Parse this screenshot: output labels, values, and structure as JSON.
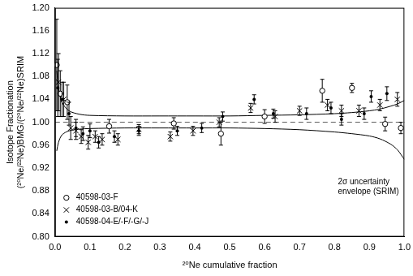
{
  "chart_data": {
    "type": "scatter",
    "x_label": "²⁰Ne cumulative fraction",
    "y_label": [
      "Isotope Fractionation",
      "(²⁰Ne/²²Ne)BMG/(²⁰Ne/²²Ne)SRIM"
    ],
    "xlim": [
      0,
      1
    ],
    "ylim": [
      0.8,
      1.2
    ],
    "xticks": [
      {
        "value": 0,
        "label": "0.0"
      },
      0.1,
      0.2,
      0.3,
      0.4,
      0.5,
      0.6,
      0.7,
      0.8,
      0.9,
      {
        "value": 1,
        "label": "1.0"
      }
    ],
    "yticks": [
      {
        "value": 0.8,
        "label": "0.80"
      },
      0.84,
      0.88,
      0.92,
      0.96,
      {
        "value": 1,
        "label": "1.00"
      },
      1.04,
      1.08,
      1.12,
      1.16,
      {
        "value": 1.2,
        "label": "1.20"
      }
    ],
    "grid": false,
    "legend": "lower left",
    "series": [
      {
        "name": "40598-03-F",
        "marker": "circle",
        "color": "#000000",
        "x": [
          0.005,
          0.015,
          0.035,
          0.155,
          0.34,
          0.475,
          0.6,
          0.765,
          0.85,
          0.945,
          0.99
        ],
        "values": [
          1.1,
          1.05,
          1.035,
          0.993,
          0.998,
          0.98,
          1.01,
          1.055,
          1.06,
          0.997,
          0.99
        ],
        "errors": [
          0.08,
          0.04,
          0.03,
          0.012,
          0.01,
          0.02,
          0.012,
          0.02,
          0.008,
          0.012,
          0.01
        ]
      },
      {
        "name": "40598-03-B/04-K",
        "marker": "x",
        "color": "#000000",
        "x": [
          0.01,
          0.025,
          0.045,
          0.06,
          0.075,
          0.095,
          0.115,
          0.135,
          0.18,
          0.24,
          0.33,
          0.395,
          0.47,
          0.56,
          0.63,
          0.7,
          0.78,
          0.82,
          0.87,
          0.93,
          0.98
        ],
        "values": [
          1.07,
          1.04,
          0.99,
          0.985,
          0.975,
          0.965,
          0.975,
          0.97,
          0.97,
          0.988,
          0.975,
          0.985,
          1.0,
          1.025,
          1.01,
          1.02,
          1.03,
          1.02,
          1.02,
          1.03,
          1.04
        ],
        "errors": [
          0.05,
          0.03,
          0.02,
          0.015,
          0.012,
          0.012,
          0.01,
          0.01,
          0.01,
          0.008,
          0.008,
          0.008,
          0.008,
          0.008,
          0.01,
          0.008,
          0.01,
          0.01,
          0.01,
          0.01,
          0.012
        ]
      },
      {
        "name": "40598-04-E/-F/-G/-J",
        "marker": "dot",
        "color": "#000000",
        "x": [
          0.008,
          0.02,
          0.04,
          0.06,
          0.08,
          0.1,
          0.125,
          0.17,
          0.24,
          0.35,
          0.42,
          0.48,
          0.57,
          0.625,
          0.72,
          0.79,
          0.82,
          0.885,
          0.905,
          0.95
        ],
        "values": [
          1.06,
          1.04,
          1.015,
          0.99,
          0.98,
          0.985,
          0.965,
          0.975,
          0.985,
          0.985,
          0.99,
          1.01,
          1.04,
          1.015,
          1.015,
          1.025,
          1.005,
          1.015,
          1.045,
          1.05
        ],
        "errors": [
          0.05,
          0.03,
          0.02,
          0.015,
          0.012,
          0.012,
          0.01,
          0.01,
          0.008,
          0.008,
          0.008,
          0.008,
          0.008,
          0.008,
          0.01,
          0.01,
          0.01,
          0.01,
          0.01,
          0.012
        ]
      }
    ],
    "reference_line": {
      "y": 1,
      "line_style": "dashed"
    },
    "envelope": {
      "label": [
        "2σ uncertainty",
        "envelope (SRIM)"
      ],
      "line_style": "solid",
      "color": "#000000",
      "x": [
        0.005,
        0.01,
        0.02,
        0.04,
        0.07,
        0.1,
        0.2,
        0.3,
        0.4,
        0.5,
        0.6,
        0.7,
        0.8,
        0.85,
        0.9,
        0.93,
        0.96,
        0.98,
        1.0
      ],
      "upper": [
        1.09,
        1.06,
        1.035,
        1.02,
        1.014,
        1.012,
        1.011,
        1.011,
        1.011,
        1.011,
        1.012,
        1.013,
        1.015,
        1.017,
        1.02,
        1.023,
        1.028,
        1.032,
        1.038
      ],
      "lower": [
        0.95,
        0.965,
        0.978,
        0.985,
        0.988,
        0.989,
        0.99,
        0.99,
        0.99,
        0.99,
        0.989,
        0.987,
        0.983,
        0.98,
        0.976,
        0.971,
        0.962,
        0.952,
        0.935
      ]
    }
  }
}
